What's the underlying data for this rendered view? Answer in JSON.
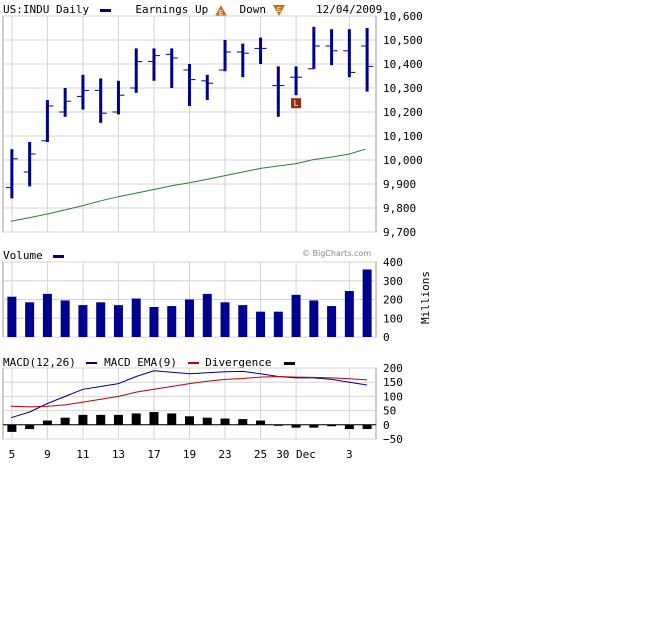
{
  "header": {
    "symbol_label": "US:INDU Daily",
    "earnings_up_label": "Earnings Up",
    "earnings_up_glyph": "E",
    "down_label": "Down",
    "down_glyph": "E",
    "date": "12/04/2009",
    "colors": {
      "bars": "#000090",
      "up_triangle": "#c0701a",
      "down_triangle": "#c0701a"
    }
  },
  "volume_header": {
    "label": "Volume",
    "watermark": "© BigCharts.com",
    "units": "Millions"
  },
  "macd_header": {
    "macd_label": "MACD(12,26)",
    "ema_label": "MACD EMA(9)",
    "divergence_label": "Divergence"
  },
  "event_marker": {
    "glyph": "L",
    "color": "#8b2e0a"
  },
  "x_labels": [
    "5",
    "9",
    "11",
    "13",
    "17",
    "19",
    "23",
    "25",
    "30 Dec",
    "3"
  ],
  "chart_data": [
    {
      "type": "ohlc",
      "title": "US:INDU Daily",
      "ylim": [
        9700,
        10600
      ],
      "yticks": [
        9700,
        9800,
        9900,
        10000,
        10100,
        10200,
        10300,
        10400,
        10500,
        10600
      ],
      "ytick_labels": [
        "9,700",
        "9,800",
        "9,900",
        "10,000",
        "10,100",
        "10,200",
        "10,300",
        "10,400",
        "10,500",
        "10,600"
      ],
      "dates": [
        "Nov 5",
        "Nov 6",
        "Nov 9",
        "Nov 10",
        "Nov 11",
        "Nov 12",
        "Nov 13",
        "Nov 16",
        "Nov 17",
        "Nov 18",
        "Nov 19",
        "Nov 20",
        "Nov 23",
        "Nov 24",
        "Nov 25",
        "Nov 27",
        "Nov 30",
        "Dec 1",
        "Dec 2",
        "Dec 3",
        "Dec 4"
      ],
      "x_tick_labels": [
        "5",
        "9",
        "11",
        "13",
        "17",
        "19",
        "23",
        "25",
        "30 Dec",
        "3"
      ],
      "ohlc": [
        [
          9885,
          10045,
          9840,
          10005
        ],
        [
          9950,
          10075,
          9890,
          10025
        ],
        [
          10080,
          10250,
          10075,
          10225
        ],
        [
          10200,
          10300,
          10180,
          10245
        ],
        [
          10265,
          10355,
          10210,
          10290
        ],
        [
          10290,
          10340,
          10155,
          10195
        ],
        [
          10200,
          10330,
          10190,
          10270
        ],
        [
          10300,
          10465,
          10280,
          10410
        ],
        [
          10410,
          10465,
          10330,
          10435
        ],
        [
          10440,
          10465,
          10300,
          10425
        ],
        [
          10375,
          10400,
          10225,
          10335
        ],
        [
          10330,
          10355,
          10250,
          10320
        ],
        [
          10375,
          10500,
          10370,
          10450
        ],
        [
          10450,
          10485,
          10345,
          10445
        ],
        [
          10465,
          10510,
          10400,
          10465
        ],
        [
          10310,
          10390,
          10180,
          10310
        ],
        [
          10345,
          10390,
          10270,
          10345
        ],
        [
          10380,
          10555,
          10380,
          10475
        ],
        [
          10475,
          10545,
          10395,
          10455
        ],
        [
          10455,
          10545,
          10345,
          10365
        ],
        [
          10475,
          10550,
          10285,
          10390
        ]
      ],
      "moving_average": {
        "color": "#2e7d32",
        "values": [
          9745,
          9760,
          9775,
          9792,
          9810,
          9830,
          9847,
          9862,
          9877,
          9893,
          9905,
          9920,
          9935,
          9950,
          9965,
          9975,
          9985,
          10002,
          10012,
          10025,
          10045
        ]
      },
      "grid": true
    },
    {
      "type": "bar",
      "title": "Volume",
      "ylabel": "Millions",
      "ylim": [
        0,
        400
      ],
      "yticks": [
        0,
        100,
        200,
        300,
        400
      ],
      "values": [
        215,
        185,
        230,
        195,
        170,
        185,
        170,
        205,
        160,
        165,
        200,
        230,
        185,
        170,
        135,
        135,
        225,
        195,
        165,
        245,
        360
      ],
      "color": "#000090",
      "grid": true
    },
    {
      "type": "line",
      "title": "MACD(12,26)",
      "ylim": [
        -50,
        200
      ],
      "yticks": [
        -50,
        0,
        50,
        100,
        150,
        200
      ],
      "series": [
        {
          "name": "MACD EMA(9)",
          "color": "#000090",
          "values": [
            25,
            45,
            75,
            100,
            125,
            135,
            145,
            170,
            190,
            185,
            180,
            183,
            187,
            188,
            180,
            170,
            165,
            165,
            160,
            150,
            140
          ]
        },
        {
          "name": "Divergence",
          "color": "#c00000",
          "values": [
            65,
            63,
            65,
            70,
            80,
            90,
            100,
            115,
            125,
            135,
            145,
            153,
            160,
            163,
            168,
            170,
            168,
            167,
            165,
            162,
            158
          ]
        }
      ],
      "histogram": {
        "color": "#000000",
        "values": [
          -25,
          -15,
          15,
          25,
          35,
          35,
          35,
          40,
          45,
          40,
          30,
          25,
          22,
          20,
          15,
          0,
          -10,
          -10,
          -5,
          -15,
          -15
        ]
      },
      "grid": true
    }
  ]
}
